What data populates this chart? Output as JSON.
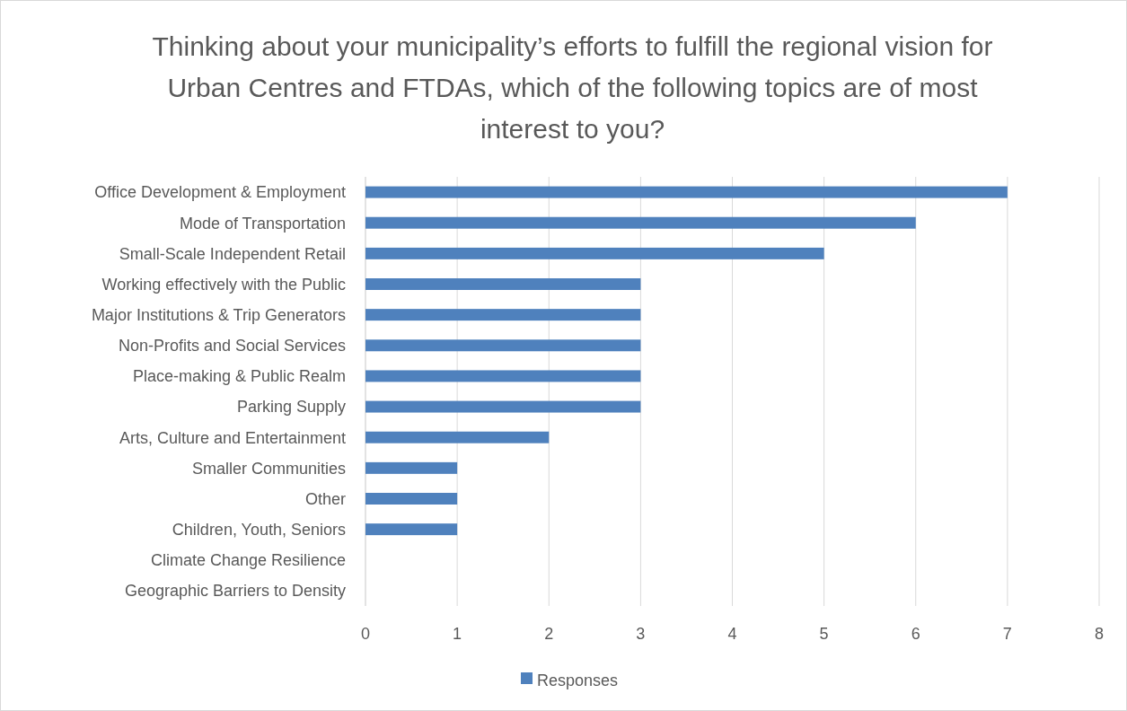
{
  "chart_data": {
    "type": "bar",
    "orientation": "horizontal",
    "title": "Thinking about your municipality’s efforts to fulfill the regional vision for Urban Centres and FTDAs, which of the following topics are of most interest to you?",
    "categories": [
      "Office Development & Employment",
      "Mode of Transportation",
      "Small-Scale Independent Retail",
      "Working effectively with the Public",
      "Major Institutions & Trip Generators",
      "Non-Profits and Social Services",
      "Place-making & Public Realm",
      "Parking Supply",
      "Arts, Culture and Entertainment",
      "Smaller Communities",
      "Other",
      "Children, Youth, Seniors",
      "Climate Change Resilience",
      "Geographic Barriers to Density"
    ],
    "series": [
      {
        "name": "Responses",
        "color": "#4f81bd",
        "values": [
          7,
          6,
          5,
          3,
          3,
          3,
          3,
          3,
          2,
          1,
          1,
          1,
          0,
          0
        ]
      }
    ],
    "xlim": [
      0,
      8
    ],
    "xticks": [
      0,
      1,
      2,
      3,
      4,
      5,
      6,
      7,
      8
    ],
    "grid": "x",
    "legend": "bottom"
  }
}
